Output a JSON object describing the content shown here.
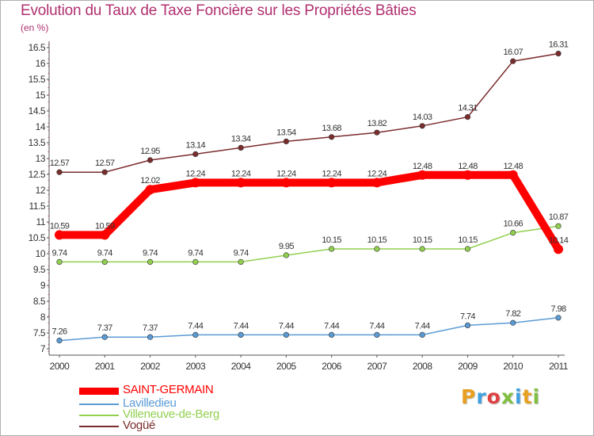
{
  "title": "Evolution du Taux de Taxe Foncière sur les Propriétés Bâties",
  "subtitle": "(en %)",
  "logo": {
    "text": "Proxiti",
    "letters": [
      {
        "ch": "P",
        "color": "#e8a020"
      },
      {
        "ch": "r",
        "color": "#40a0e0"
      },
      {
        "ch": "o",
        "color": "#e04040"
      },
      {
        "ch": "x",
        "color": "#80c040"
      },
      {
        "ch": "i",
        "color": "#40a0e0"
      },
      {
        "ch": "t",
        "color": "#e8a020"
      },
      {
        "ch": "i",
        "color": "#80c040"
      }
    ]
  },
  "chart_data": {
    "type": "line",
    "x": [
      "2000",
      "2001",
      "2002",
      "2003",
      "2004",
      "2005",
      "2006",
      "2007",
      "2008",
      "2009",
      "2010",
      "2011"
    ],
    "ylim": [
      7,
      16.5
    ],
    "yticks": [
      "7",
      "7.5",
      "8",
      "8.5",
      "9",
      "9.5",
      "10",
      "10.5",
      "11",
      "11.5",
      "12",
      "12.5",
      "13",
      "13.5",
      "14",
      "14.5",
      "15",
      "15.5",
      "16",
      "16.5"
    ],
    "grid": false,
    "legend_position": "bottom-left",
    "series": [
      {
        "name": "SAINT-GERMAIN",
        "color": "#ff0000",
        "highlight": true,
        "values": [
          10.59,
          10.59,
          12.02,
          12.24,
          12.24,
          12.24,
          12.24,
          12.24,
          12.48,
          12.48,
          12.48,
          10.14
        ],
        "labels": [
          "10.59",
          "10.59",
          "12.02",
          "12.24",
          "12.24",
          "12.24",
          "12.24",
          "12.24",
          "12.48",
          "12.48",
          "12.48",
          "10.14"
        ]
      },
      {
        "name": "Lavilledieu",
        "color": "#5b9bd5",
        "highlight": false,
        "values": [
          7.26,
          7.37,
          7.37,
          7.44,
          7.44,
          7.44,
          7.44,
          7.44,
          7.44,
          7.74,
          7.82,
          7.98
        ],
        "labels": [
          "7.26",
          "7.37",
          "7.37",
          "7.44",
          "7.44",
          "7.44",
          "7.44",
          "7.44",
          "7.44",
          "7.74",
          "7.82",
          "7.98"
        ]
      },
      {
        "name": "Villeneuve-de-Berg",
        "color": "#92d050",
        "highlight": false,
        "values": [
          9.74,
          9.74,
          9.74,
          9.74,
          9.74,
          9.95,
          10.15,
          10.15,
          10.15,
          10.15,
          10.66,
          10.87
        ],
        "labels": [
          "9.74",
          "9.74",
          "9.74",
          "9.74",
          "9.74",
          "9.95",
          "10.15",
          "10.15",
          "10.15",
          "10.15",
          "10.66",
          "10.87"
        ]
      },
      {
        "name": "Vogüé",
        "color": "#7b2c2c",
        "highlight": false,
        "values": [
          12.57,
          12.57,
          12.95,
          13.14,
          13.34,
          13.54,
          13.68,
          13.82,
          14.03,
          14.31,
          16.07,
          16.31
        ],
        "labels": [
          "12.57",
          "12.57",
          "12.95",
          "13.14",
          "13.34",
          "13.54",
          "13.68",
          "13.82",
          "14.03",
          "14.31",
          "16.07",
          "16.31"
        ]
      }
    ]
  }
}
